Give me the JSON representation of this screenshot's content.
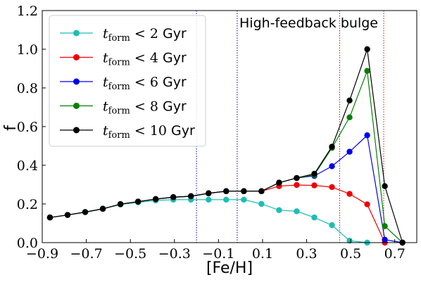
{
  "chart_data": {
    "type": "line",
    "title": "",
    "xlabel": "[Fe/H]",
    "ylabel": "f",
    "xlim": [
      -0.9,
      0.8
    ],
    "ylim": [
      0.0,
      1.2
    ],
    "xticks": [
      -0.9,
      -0.7,
      -0.5,
      -0.3,
      -0.1,
      0.1,
      0.3,
      0.5,
      0.7
    ],
    "xtick_labels": [
      "−0.9",
      "−0.7",
      "−0.5",
      "−0.3",
      "−0.1",
      "0.1",
      "0.3",
      "0.5",
      "0.7"
    ],
    "yticks": [
      0.0,
      0.2,
      0.4,
      0.6,
      0.8,
      1.0,
      1.2
    ],
    "ytick_labels": [
      "0.0",
      "0.2",
      "0.4",
      "0.6",
      "0.8",
      "1.0",
      "1.2"
    ],
    "grid": false,
    "legend_position": "top-left",
    "annotation": "High-feedback bulge",
    "vlines": [
      {
        "x": -0.2,
        "color": "#0000cc",
        "style": "dotted"
      },
      {
        "x": -0.015,
        "color": "#0000cc",
        "style": "dotted"
      },
      {
        "x": 0.45,
        "color": "#ee0000",
        "style": "dotted"
      },
      {
        "x": 0.65,
        "color": "#ee0000",
        "style": "dotted"
      }
    ],
    "x": [
      -0.865,
      -0.785,
      -0.705,
      -0.625,
      -0.545,
      -0.465,
      -0.385,
      -0.305,
      -0.225,
      -0.145,
      -0.065,
      0.015,
      0.095,
      0.175,
      0.255,
      0.335,
      0.415,
      0.495,
      0.575,
      0.655,
      0.735
    ],
    "series": [
      {
        "name_main": "t",
        "name_sub": "form",
        "name_rest": " < 2 ",
        "name_unit": "Gyr",
        "color": "#1ebdb4",
        "values": [
          0.13,
          0.143,
          0.158,
          0.175,
          0.197,
          0.208,
          0.218,
          0.222,
          0.222,
          0.222,
          0.222,
          0.222,
          0.2,
          0.168,
          0.162,
          0.13,
          0.09,
          0.01,
          0.0,
          null,
          null
        ]
      },
      {
        "name_main": "t",
        "name_sub": "form",
        "name_rest": " < 4 ",
        "name_unit": "Gyr",
        "color": "#ee0000",
        "values": [
          0.13,
          0.143,
          0.158,
          0.175,
          0.199,
          0.212,
          0.225,
          0.235,
          0.24,
          0.255,
          0.266,
          0.266,
          0.266,
          0.292,
          0.298,
          0.296,
          0.287,
          0.252,
          0.198,
          0.0,
          null
        ]
      },
      {
        "name_main": "t",
        "name_sub": "form",
        "name_rest": " < 6 ",
        "name_unit": "Gyr",
        "color": "#0000ee",
        "values": [
          0.13,
          0.143,
          0.158,
          0.175,
          0.199,
          0.212,
          0.225,
          0.235,
          0.24,
          0.255,
          0.266,
          0.266,
          0.266,
          0.31,
          0.334,
          0.345,
          0.395,
          0.47,
          0.555,
          0.015,
          0.0
        ]
      },
      {
        "name_main": "t",
        "name_sub": "form",
        "name_rest": " < 8 ",
        "name_unit": "Gyr",
        "color": "#008000",
        "values": [
          0.13,
          0.143,
          0.158,
          0.175,
          0.199,
          0.212,
          0.225,
          0.235,
          0.24,
          0.255,
          0.266,
          0.266,
          0.266,
          0.31,
          0.334,
          0.35,
          0.49,
          0.648,
          0.888,
          0.085,
          0.0
        ]
      },
      {
        "name_main": "t",
        "name_sub": "form",
        "name_rest": " < 10 ",
        "name_unit": "Gyr",
        "color": "#000000",
        "values": [
          0.13,
          0.143,
          0.158,
          0.175,
          0.199,
          0.212,
          0.225,
          0.235,
          0.24,
          0.255,
          0.266,
          0.266,
          0.266,
          0.31,
          0.334,
          0.356,
          0.496,
          0.735,
          1.0,
          0.292,
          0.0
        ]
      }
    ]
  }
}
